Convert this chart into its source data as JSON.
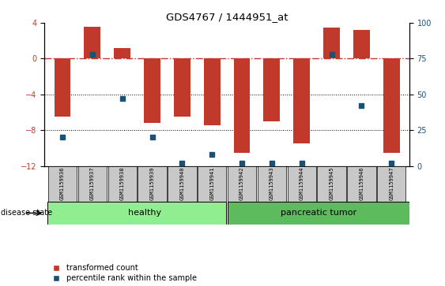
{
  "title": "GDS4767 / 1444951_at",
  "samples": [
    "GSM1159936",
    "GSM1159937",
    "GSM1159938",
    "GSM1159939",
    "GSM1159940",
    "GSM1159941",
    "GSM1159942",
    "GSM1159943",
    "GSM1159944",
    "GSM1159945",
    "GSM1159946",
    "GSM1159947"
  ],
  "red_values": [
    -6.5,
    3.6,
    1.2,
    -7.2,
    -6.5,
    -7.5,
    -10.5,
    -7.0,
    -9.5,
    3.5,
    3.2,
    -10.5
  ],
  "blue_values_pct": [
    20,
    78,
    47,
    20,
    2,
    8,
    2,
    2,
    2,
    78,
    42,
    2
  ],
  "ylim_left": [
    -12,
    4
  ],
  "ylim_right": [
    0,
    100
  ],
  "yticks_left": [
    -12,
    -8,
    -4,
    0,
    4
  ],
  "yticks_right": [
    0,
    25,
    50,
    75,
    100
  ],
  "healthy_count": 6,
  "tumor_count": 6,
  "group_labels": [
    "healthy",
    "pancreatic tumor"
  ],
  "bar_color": "#C0392B",
  "blue_color": "#1A5276",
  "hline_color": "#C0392B",
  "grid_color": "#000000",
  "bg_color": "#FFFFFF",
  "xtick_bg": "#C8C8C8",
  "healthy_color": "#90EE90",
  "tumor_color": "#5DBB5D",
  "disease_label": "disease state",
  "legend_red": "transformed count",
  "legend_blue": "percentile rank within the sample"
}
